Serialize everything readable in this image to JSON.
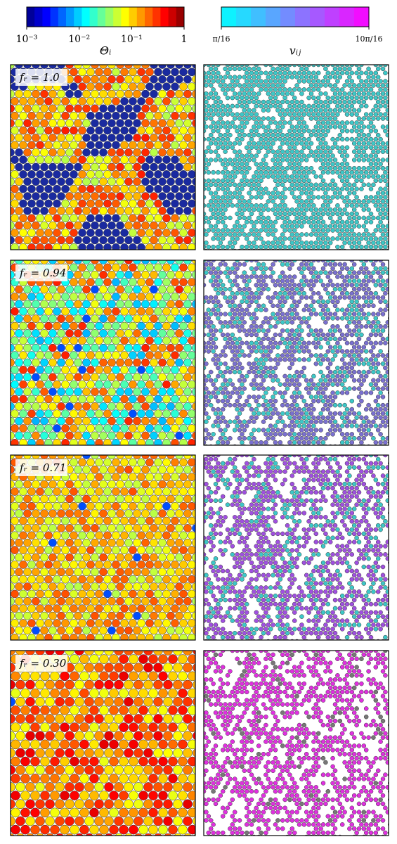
{
  "colorbars": [
    {
      "label": "Θᵢ",
      "scale": "log",
      "lim": [
        0.001,
        1
      ],
      "ticks": [
        {
          "value": 0.001,
          "label": "10⁻³"
        },
        {
          "value": 0.01,
          "label": "10⁻²"
        },
        {
          "value": 0.1,
          "label": "10⁻¹"
        },
        1
      ]
    },
    {
      "label": "vᵢⱼ",
      "scale": "linear",
      "lim": [
        0.19635,
        1.9635
      ],
      "ticks": [
        {
          "value": 0.19635,
          "label": "π/16"
        },
        {
          "value": 1.9635,
          "label": "10π/16"
        }
      ]
    }
  ],
  "panels": [
    {
      "label": "fᵣ = 1.0"
    },
    {
      "label": "fᵣ = 0.94"
    },
    {
      "label": "fᵣ = 0.71"
    },
    {
      "label": "fᵣ = 0.30"
    }
  ]
}
